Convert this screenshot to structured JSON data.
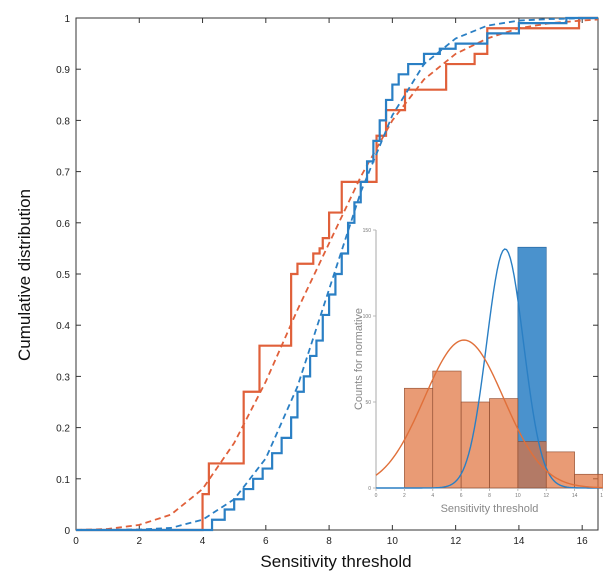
{
  "chart_data": [
    {
      "type": "line",
      "xlabel": "Sensitivity threshold",
      "ylabel": "Cumulative distribution",
      "xlim": [
        0,
        16.5
      ],
      "ylim": [
        0,
        1
      ],
      "xticks": [
        "0",
        "2",
        "4",
        "6",
        "8",
        "10",
        "12",
        "14",
        "16"
      ],
      "yticks": [
        "0",
        "0.1",
        "0.2",
        "0.3",
        "0.4",
        "0.5",
        "0.6",
        "0.7",
        "0.8",
        "0.9",
        "1"
      ],
      "series": [
        {
          "style": "step",
          "color": "#e0603a",
          "x": [
            3.8,
            4.0,
            4.2,
            5.3,
            5.8,
            6.8,
            7.0,
            7.5,
            7.7,
            7.8,
            8.0,
            8.4,
            9.5,
            9.8,
            10.0,
            10.4,
            11.7,
            12.6,
            13.0,
            15.9
          ],
          "y": [
            0.0,
            0.07,
            0.13,
            0.27,
            0.36,
            0.5,
            0.52,
            0.54,
            0.55,
            0.57,
            0.62,
            0.68,
            0.77,
            0.82,
            0.82,
            0.86,
            0.91,
            0.93,
            0.98,
            1.0
          ]
        },
        {
          "style": "dashed",
          "color": "#e0603a",
          "x": [
            0,
            1,
            2,
            3,
            4,
            5,
            6,
            7,
            8,
            9,
            10,
            11,
            12,
            13,
            14,
            15,
            16,
            16.5
          ],
          "y": [
            0.0,
            0.002,
            0.01,
            0.03,
            0.08,
            0.17,
            0.29,
            0.43,
            0.56,
            0.69,
            0.8,
            0.88,
            0.93,
            0.96,
            0.98,
            0.99,
            0.995,
            0.997
          ]
        },
        {
          "style": "step",
          "color": "#2a7fc4",
          "x": [
            3.7,
            4.3,
            4.7,
            5.0,
            5.3,
            5.6,
            5.9,
            6.2,
            6.5,
            6.8,
            7.0,
            7.2,
            7.4,
            7.6,
            7.8,
            8.0,
            8.2,
            8.4,
            8.6,
            8.8,
            9.0,
            9.2,
            9.4,
            9.6,
            9.8,
            10.0,
            10.2,
            10.5,
            11.0,
            11.5,
            12.0,
            13.0,
            14.0,
            15.5
          ],
          "y": [
            0.0,
            0.02,
            0.04,
            0.06,
            0.08,
            0.1,
            0.12,
            0.15,
            0.18,
            0.22,
            0.27,
            0.3,
            0.34,
            0.37,
            0.42,
            0.46,
            0.5,
            0.54,
            0.6,
            0.64,
            0.68,
            0.72,
            0.76,
            0.8,
            0.84,
            0.87,
            0.89,
            0.91,
            0.93,
            0.94,
            0.95,
            0.97,
            0.99,
            1.0
          ]
        },
        {
          "style": "dashed",
          "color": "#2a7fc4",
          "x": [
            0,
            2,
            3,
            4,
            5,
            6,
            7,
            8,
            9,
            10,
            11,
            12,
            13,
            14,
            15,
            16.5
          ],
          "y": [
            0.0,
            0.001,
            0.004,
            0.02,
            0.06,
            0.14,
            0.28,
            0.47,
            0.66,
            0.81,
            0.91,
            0.96,
            0.985,
            0.995,
            0.998,
            1.0
          ]
        }
      ]
    },
    {
      "type": "bar",
      "xlabel": "Sensitivity threshold",
      "ylabel": "Counts for normative",
      "xlim": [
        0,
        16
      ],
      "ylim": [
        0,
        150
      ],
      "xticks": [
        "0",
        "2",
        "4",
        "6",
        "8",
        "10",
        "12",
        "14",
        "16"
      ],
      "yticks": [
        "0",
        "50",
        "100",
        "150"
      ],
      "bin_edges": [
        0,
        2,
        4,
        6,
        8,
        10,
        12,
        14,
        16
      ],
      "series": [
        {
          "color": "#2a7fc4",
          "values": [
            0,
            0,
            0,
            0,
            0,
            140,
            0,
            0
          ]
        },
        {
          "color": "#e0703a",
          "values": [
            0,
            58,
            68,
            50,
            52,
            27,
            21,
            8
          ]
        }
      ],
      "fits": [
        {
          "color": "#2a7fc4",
          "mean": 9.1,
          "sd": 1.3,
          "scale": 139
        },
        {
          "color": "#e0703a",
          "mean": 6.2,
          "sd": 2.8,
          "scale": 86
        }
      ]
    }
  ]
}
